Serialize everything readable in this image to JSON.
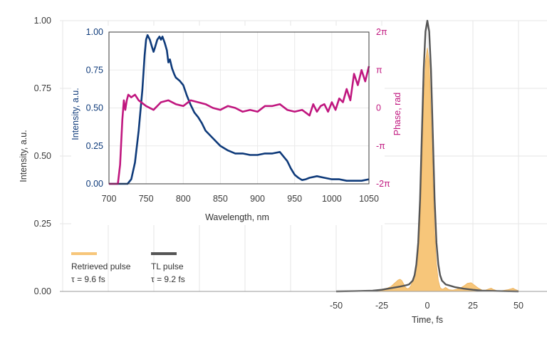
{
  "chart_data": [
    {
      "type": "area",
      "name": "main-temporal",
      "xlabel": "Time, fs",
      "ylabel": "Intensity, a.u.",
      "xlim": [
        -50,
        50
      ],
      "ylim": [
        0,
        1
      ],
      "x_ticks": [
        -50,
        -25,
        0,
        25,
        50
      ],
      "x_tick_labels": [
        "-50",
        "-25",
        "0",
        "25",
        "50"
      ],
      "y_ticks": [
        0,
        0.25,
        0.5,
        0.75,
        1.0
      ],
      "y_tick_labels": [
        "0.00",
        "0.25",
        "0.50",
        "0.75",
        "1.00"
      ],
      "grid": true,
      "legend_position": "bottom-left",
      "series": [
        {
          "name": "Retrieved pulse",
          "note": "τ = 9.6 fs",
          "kind": "area",
          "color": "#F7C67A",
          "x": [
            -50,
            -40,
            -30,
            -25,
            -22,
            -20,
            -18,
            -16,
            -15,
            -14,
            -13,
            -12,
            -11,
            -10,
            -9,
            -8,
            -7,
            -6,
            -5,
            -4,
            -3,
            -2,
            -1,
            0,
            1,
            2,
            3,
            4,
            5,
            6,
            7,
            8,
            9,
            10,
            11,
            12,
            14,
            16,
            18,
            20,
            22,
            24,
            26,
            28,
            30,
            32,
            34,
            35,
            36,
            38,
            40,
            42,
            44,
            46,
            47,
            48,
            50
          ],
          "y": [
            0,
            0.002,
            0.004,
            0.008,
            0.012,
            0.018,
            0.03,
            0.042,
            0.045,
            0.04,
            0.028,
            0.015,
            0.01,
            0.012,
            0.022,
            0.04,
            0.06,
            0.09,
            0.14,
            0.25,
            0.45,
            0.7,
            0.85,
            0.9,
            0.85,
            0.66,
            0.42,
            0.22,
            0.1,
            0.04,
            0.015,
            0.008,
            0.01,
            0.015,
            0.01,
            0.006,
            0.005,
            0.008,
            0.012,
            0.02,
            0.03,
            0.032,
            0.022,
            0.012,
            0.005,
            0.005,
            0.01,
            0.012,
            0.008,
            0.003,
            0.002,
            0.004,
            0.006,
            0.01,
            0.012,
            0.008,
            0.002
          ]
        },
        {
          "name": "TL pulse",
          "note": "τ = 9.2 fs",
          "kind": "line",
          "color": "#555555",
          "x": [
            -50,
            -40,
            -30,
            -25,
            -20,
            -15,
            -12,
            -10,
            -8,
            -7,
            -6,
            -5,
            -4,
            -3,
            -2,
            -1,
            0,
            1,
            2,
            3,
            4,
            5,
            6,
            7,
            8,
            10,
            12,
            15,
            20,
            25,
            30,
            40,
            50
          ],
          "y": [
            0,
            0.001,
            0.003,
            0.006,
            0.012,
            0.018,
            0.022,
            0.026,
            0.04,
            0.06,
            0.1,
            0.18,
            0.34,
            0.58,
            0.82,
            0.96,
            1.0,
            0.96,
            0.82,
            0.58,
            0.34,
            0.18,
            0.1,
            0.06,
            0.04,
            0.026,
            0.022,
            0.016,
            0.01,
            0.006,
            0.003,
            0.001,
            0
          ]
        }
      ]
    },
    {
      "type": "line",
      "name": "inset-spectrum",
      "xlabel": "Wavelength, nm",
      "ylabel": "Intensity, a.u.",
      "y2label": "Phase, rad",
      "xlim": [
        700,
        1050
      ],
      "ylim": [
        0,
        1
      ],
      "y2lim": [
        -2,
        2
      ],
      "x_ticks": [
        700,
        750,
        800,
        850,
        900,
        950,
        1000,
        1050
      ],
      "x_tick_labels": [
        "700",
        "750",
        "800",
        "850",
        "900",
        "950",
        "1000",
        "1050"
      ],
      "y_ticks": [
        0,
        0.25,
        0.5,
        0.75,
        1.0
      ],
      "y_tick_labels": [
        "0.00",
        "0.25",
        "0.50",
        "0.75",
        "1.00"
      ],
      "y2_ticks": [
        -2,
        -1,
        0,
        1,
        2
      ],
      "y2_tick_labels": [
        "-2π",
        "-π",
        "0",
        "π",
        "2π"
      ],
      "grid": true,
      "series": [
        {
          "name": "Intensity",
          "axis": "left",
          "color": "#0E3A7A",
          "x": [
            700,
            725,
            730,
            735,
            740,
            745,
            748,
            750,
            752,
            755,
            758,
            760,
            762,
            765,
            768,
            770,
            772,
            775,
            778,
            780,
            782,
            785,
            788,
            790,
            795,
            800,
            805,
            810,
            815,
            820,
            825,
            830,
            840,
            850,
            860,
            870,
            880,
            890,
            900,
            910,
            920,
            930,
            935,
            940,
            945,
            950,
            955,
            960,
            965,
            970,
            980,
            990,
            1000,
            1010,
            1020,
            1030,
            1040,
            1050
          ],
          "y": [
            0,
            0,
            0.03,
            0.14,
            0.35,
            0.62,
            0.85,
            0.95,
            0.98,
            0.95,
            0.9,
            0.87,
            0.9,
            0.95,
            0.97,
            0.95,
            0.97,
            0.93,
            0.88,
            0.8,
            0.82,
            0.76,
            0.72,
            0.7,
            0.68,
            0.65,
            0.58,
            0.52,
            0.47,
            0.44,
            0.4,
            0.35,
            0.3,
            0.25,
            0.22,
            0.2,
            0.2,
            0.19,
            0.19,
            0.2,
            0.2,
            0.21,
            0.18,
            0.15,
            0.1,
            0.06,
            0.04,
            0.025,
            0.03,
            0.04,
            0.05,
            0.04,
            0.03,
            0.03,
            0.02,
            0.02,
            0.02,
            0.03
          ]
        },
        {
          "name": "Phase",
          "axis": "right",
          "color": "#C0177F",
          "x": [
            700,
            712,
            715,
            718,
            720,
            722,
            724,
            726,
            730,
            735,
            740,
            750,
            760,
            770,
            780,
            790,
            800,
            810,
            820,
            830,
            840,
            850,
            860,
            870,
            880,
            890,
            900,
            910,
            920,
            930,
            940,
            950,
            960,
            970,
            975,
            980,
            985,
            990,
            995,
            1000,
            1005,
            1010,
            1015,
            1020,
            1025,
            1030,
            1035,
            1040,
            1045,
            1050
          ],
          "y": [
            -2,
            -2,
            -1.5,
            -0.3,
            0.2,
            -0.05,
            0.2,
            0.35,
            0.28,
            0.35,
            0.2,
            0.05,
            -0.05,
            0.15,
            0.2,
            0.1,
            0.05,
            0.2,
            0.15,
            0.1,
            0.0,
            -0.05,
            0.05,
            0.0,
            -0.1,
            -0.05,
            -0.1,
            0.05,
            0.05,
            0.1,
            -0.05,
            -0.1,
            -0.05,
            -0.2,
            0.1,
            -0.1,
            0.05,
            0.1,
            -0.1,
            0.15,
            -0.05,
            0.25,
            0.15,
            0.5,
            0.2,
            0.9,
            0.6,
            1.0,
            0.7,
            1.1
          ]
        }
      ]
    }
  ],
  "legend": [
    {
      "label": "Retrieved pulse",
      "note": "τ = 9.6 fs",
      "color": "#F7C67A"
    },
    {
      "label": "TL pulse",
      "note": "τ = 9.2 fs",
      "color": "#555555"
    }
  ]
}
